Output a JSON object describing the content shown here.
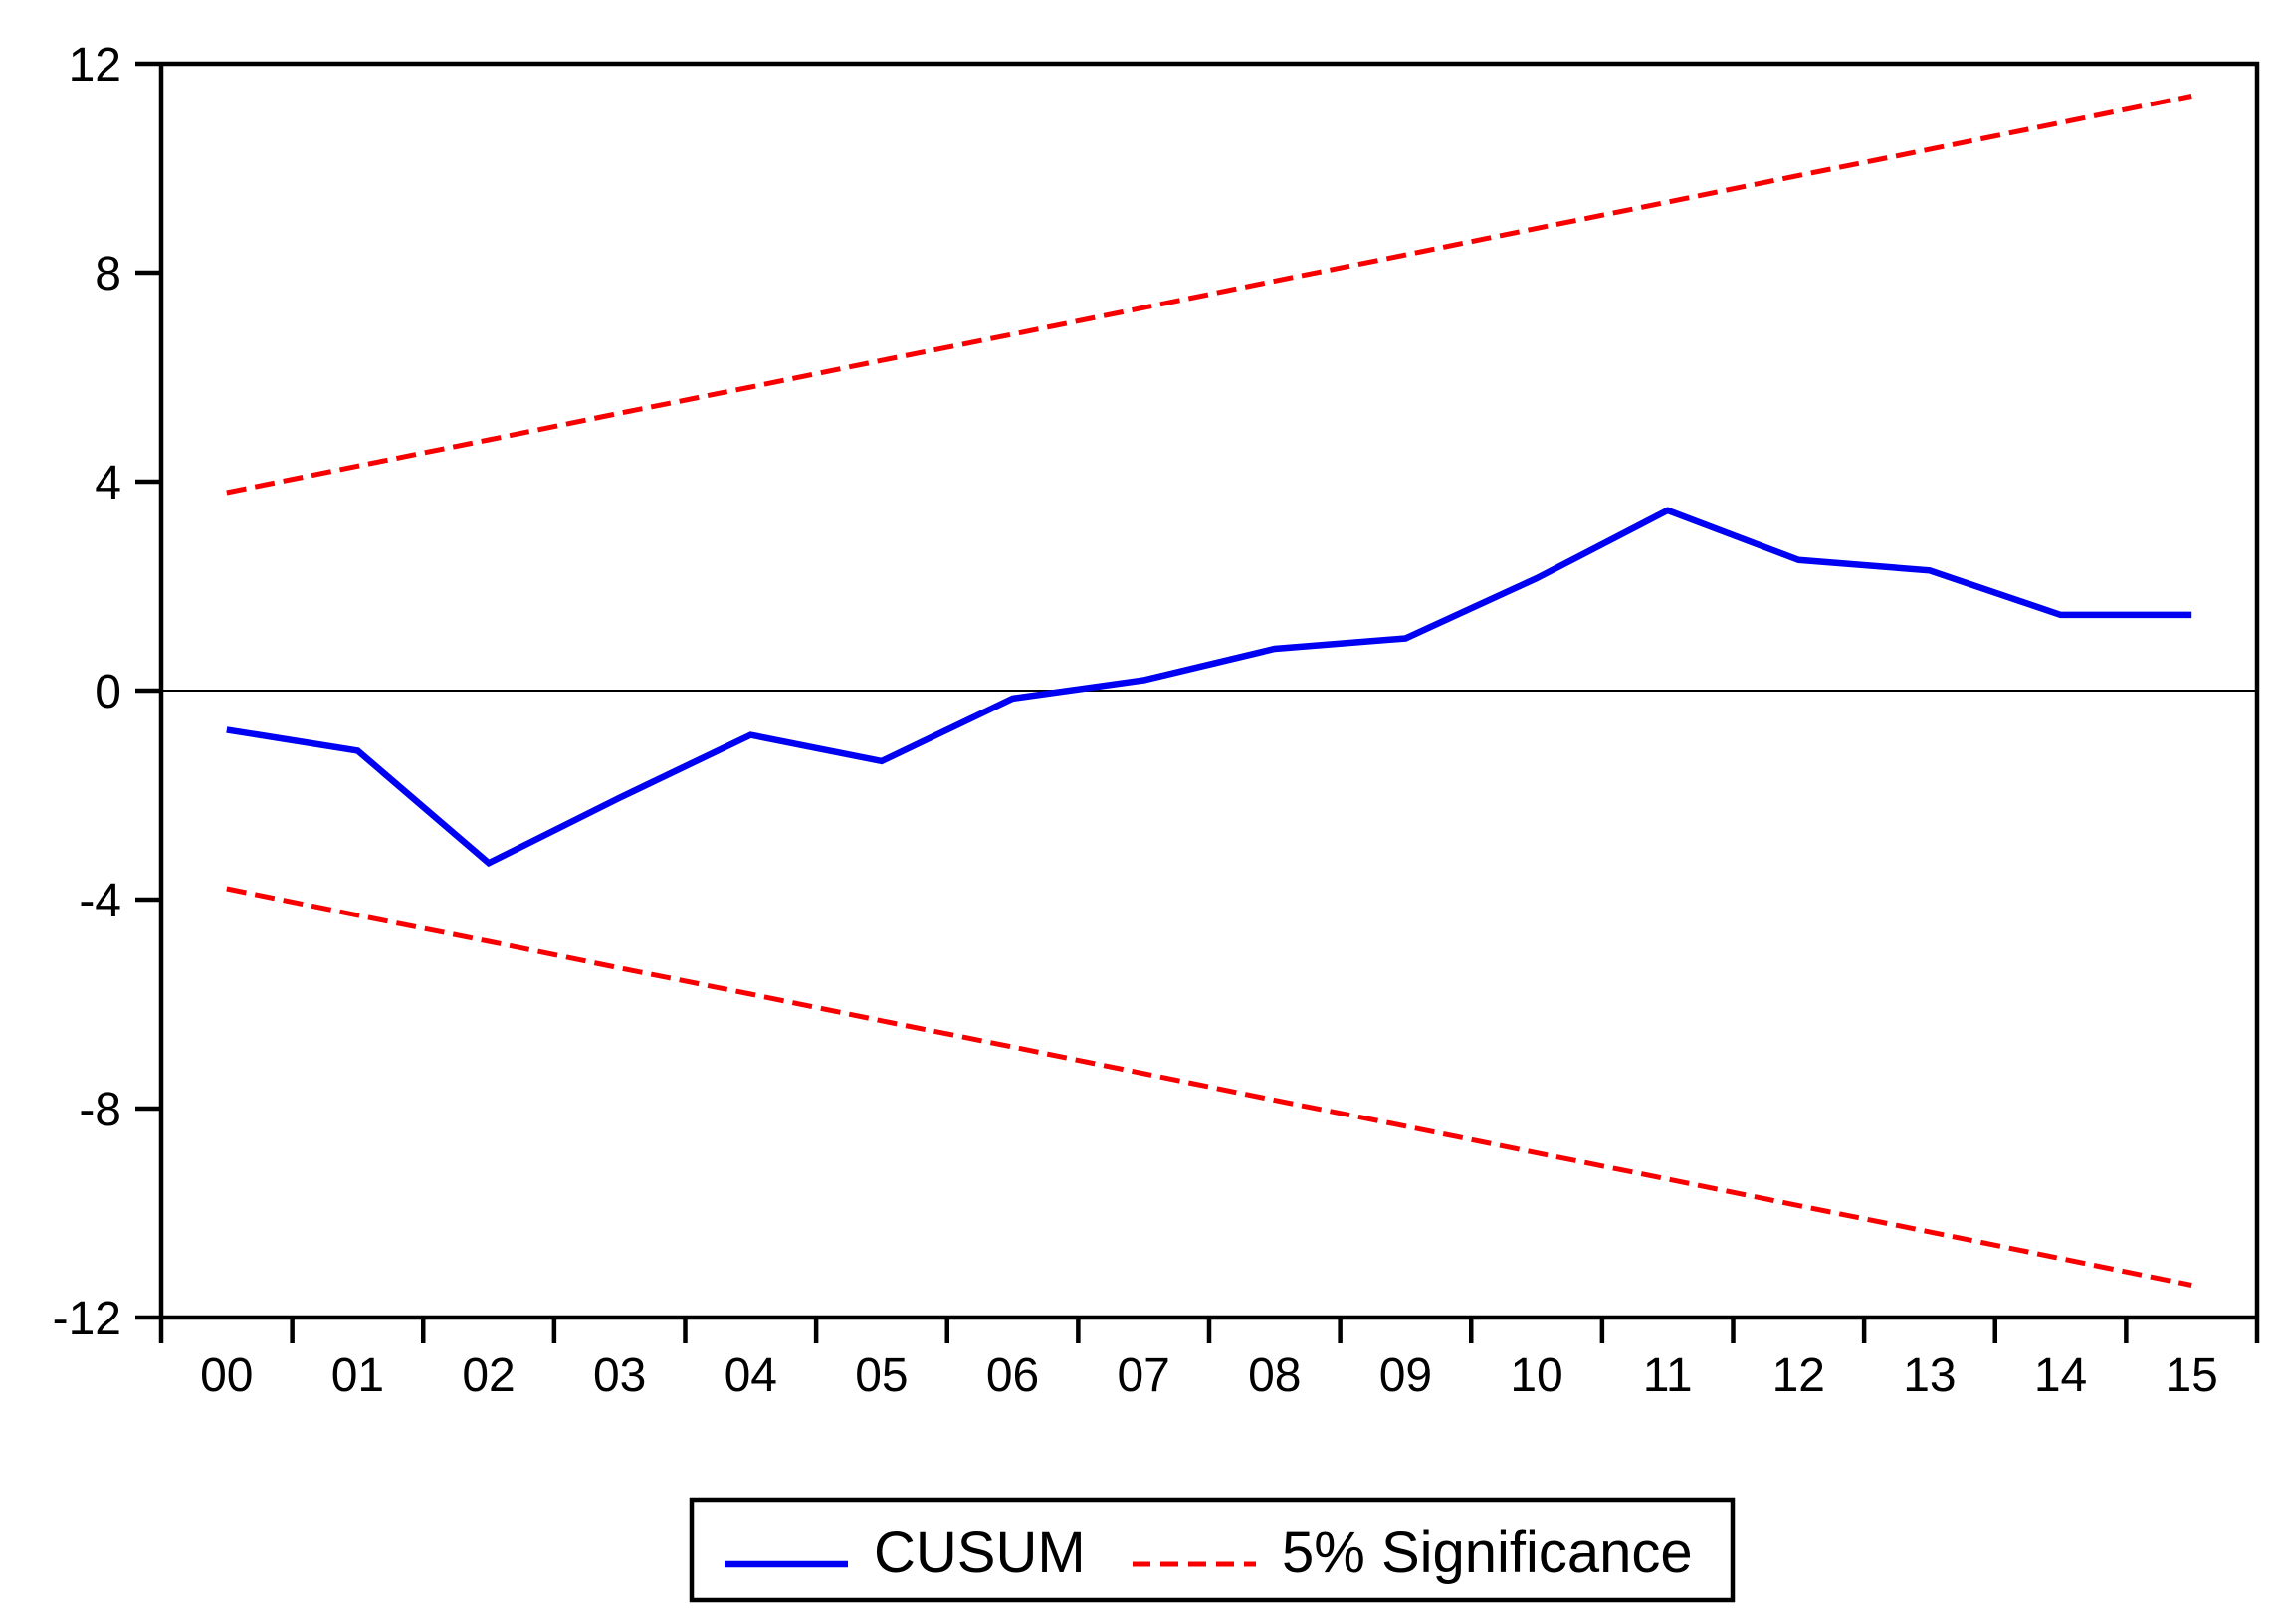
{
  "figure": {
    "background": "#ffffff"
  },
  "colors": {
    "axis": "#000000",
    "zero_line": "#000000",
    "cusum": "#0000f2",
    "significance": "#f80000",
    "plot_background": "#ffffff"
  },
  "y_axis": {
    "tick_labels": [
      "12",
      "8",
      "4",
      "0",
      "-4",
      "-8",
      "-12"
    ],
    "tick_values": [
      12,
      8,
      4,
      0,
      -4,
      -8,
      -12
    ]
  },
  "x_axis": {
    "tick_labels": [
      "00",
      "01",
      "02",
      "03",
      "04",
      "05",
      "06",
      "07",
      "08",
      "09",
      "10",
      "11",
      "12",
      "13",
      "14",
      "15"
    ]
  },
  "legend": {
    "items": [
      {
        "label": "CUSUM",
        "color": "#0000f2",
        "style": "solid"
      },
      {
        "label": "5% Significance",
        "color": "#f80000",
        "style": "dashed"
      }
    ]
  },
  "chart_data": {
    "type": "line",
    "title": "",
    "xlabel": "",
    "ylabel": "",
    "x_labels": [
      "00",
      "01",
      "02",
      "03",
      "04",
      "05",
      "06",
      "07",
      "08",
      "09",
      "10",
      "11",
      "12",
      "13",
      "14",
      "15"
    ],
    "ylim": [
      -12,
      12
    ],
    "y_ticks": [
      12,
      8,
      4,
      0,
      -4,
      -8,
      -12
    ],
    "grid": false,
    "zero_line": true,
    "legend_position": "bottom-center-boxed",
    "series": [
      {
        "name": "CUSUM",
        "color": "#0000f2",
        "style": "solid",
        "width": 6.5,
        "values": [
          -0.75,
          -1.15,
          -3.3,
          -2.05,
          -0.85,
          -1.35,
          -0.15,
          0.2,
          0.8,
          1.0,
          2.15,
          3.45,
          2.5,
          2.3,
          1.45,
          1.45
        ]
      },
      {
        "name": "5% Significance (upper bound)",
        "color": "#f80000",
        "style": "dashed",
        "width": 5,
        "values": [
          3.79,
          4.3,
          4.8,
          5.31,
          5.81,
          6.32,
          6.82,
          7.33,
          7.84,
          8.34,
          8.85,
          9.35,
          9.86,
          10.36,
          10.87,
          11.38
        ]
      },
      {
        "name": "5% Significance (lower bound)",
        "color": "#f80000",
        "style": "dashed",
        "width": 5,
        "values": [
          -3.79,
          -4.3,
          -4.8,
          -5.31,
          -5.81,
          -6.32,
          -6.82,
          -7.33,
          -7.84,
          -8.34,
          -8.85,
          -9.35,
          -9.86,
          -10.36,
          -10.87,
          -11.38
        ]
      }
    ]
  }
}
